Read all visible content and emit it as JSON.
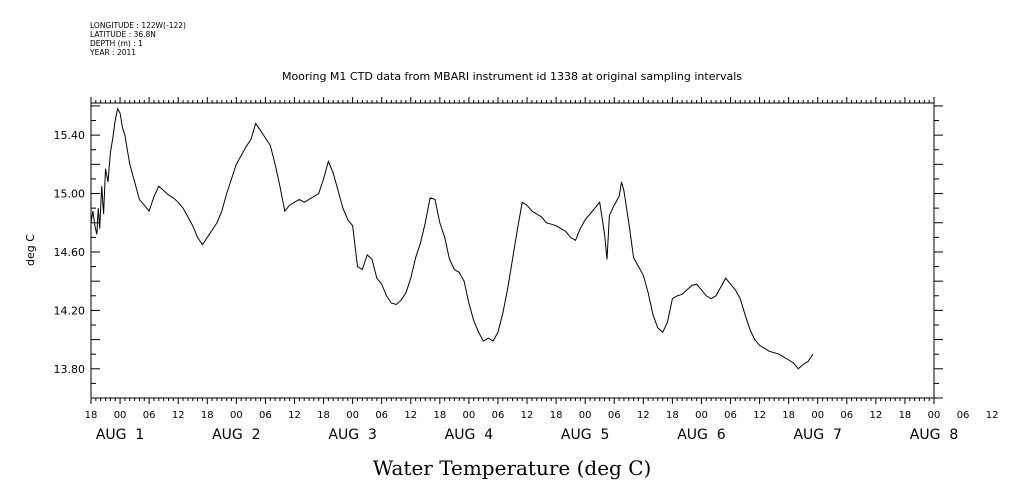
{
  "meta": {
    "longitude": "LONGITUDE : 122W(-122)",
    "latitude": "LATITUDE : 36.8N",
    "depth": "DEPTH (m) : 1",
    "year": "YEAR : 2011"
  },
  "chart_data": {
    "type": "line",
    "title": "Mooring M1 CTD data from MBARI instrument id 1338 at original sampling intervals",
    "xlabel": "Water Temperature (deg C)",
    "ylabel": "deg C",
    "ylim": [
      13.6,
      15.62
    ],
    "xlim_hours": [
      -6,
      168
    ],
    "yticks": [
      13.8,
      14.2,
      14.6,
      15.0,
      15.4
    ],
    "ytick_labels": [
      "13.80",
      "14.20",
      "14.60",
      "15.00",
      "15.40"
    ],
    "xtick_labels": [
      "18",
      "00",
      "06",
      "12",
      "18",
      "00",
      "06",
      "12",
      "18",
      "00",
      "06",
      "12",
      "18",
      "00",
      "06",
      "12",
      "18",
      "00",
      "06",
      "12",
      "18",
      "00",
      "06",
      "12",
      "18",
      "00",
      "06",
      "12",
      "18",
      "00",
      "06",
      "12",
      "18"
    ],
    "day_labels": [
      {
        "text": "AUG  1",
        "hour": 0
      },
      {
        "text": "AUG  2",
        "hour": 24
      },
      {
        "text": "AUG  3",
        "hour": 48
      },
      {
        "text": "AUG  4",
        "hour": 72
      },
      {
        "text": "AUG  5",
        "hour": 96
      },
      {
        "text": "AUG  6",
        "hour": 120
      },
      {
        "text": "AUG  7",
        "hour": 144
      },
      {
        "text": "AUG  8",
        "hour": 168
      }
    ],
    "series": [
      {
        "color": "#000000",
        "points": [
          [
            -6,
            14.8
          ],
          [
            -5.6,
            14.88
          ],
          [
            -5.2,
            14.78
          ],
          [
            -4.8,
            14.72
          ],
          [
            -4.5,
            14.9
          ],
          [
            -4.2,
            14.76
          ],
          [
            -3.8,
            15.05
          ],
          [
            -3.4,
            14.86
          ],
          [
            -3.0,
            15.17
          ],
          [
            -2.5,
            15.08
          ],
          [
            -2.0,
            15.28
          ],
          [
            -1.5,
            15.38
          ],
          [
            -1.0,
            15.5
          ],
          [
            -0.5,
            15.58
          ],
          [
            0,
            15.55
          ],
          [
            0.5,
            15.45
          ],
          [
            1.0,
            15.4
          ],
          [
            1.5,
            15.3
          ],
          [
            2,
            15.2
          ],
          [
            3,
            15.08
          ],
          [
            4,
            14.96
          ],
          [
            5,
            14.92
          ],
          [
            6,
            14.88
          ],
          [
            7,
            14.98
          ],
          [
            8,
            15.05
          ],
          [
            9,
            15.02
          ],
          [
            10,
            14.99
          ],
          [
            11,
            14.97
          ],
          [
            12,
            14.94
          ],
          [
            13,
            14.9
          ],
          [
            14,
            14.84
          ],
          [
            15,
            14.78
          ],
          [
            16,
            14.7
          ],
          [
            17,
            14.65
          ],
          [
            18,
            14.7
          ],
          [
            19,
            14.75
          ],
          [
            20,
            14.8
          ],
          [
            21,
            14.88
          ],
          [
            22,
            15.0
          ],
          [
            23,
            15.1
          ],
          [
            24,
            15.2
          ],
          [
            25,
            15.26
          ],
          [
            26,
            15.32
          ],
          [
            27,
            15.37
          ],
          [
            28,
            15.48
          ],
          [
            29,
            15.43
          ],
          [
            30,
            15.38
          ],
          [
            31,
            15.33
          ],
          [
            32,
            15.2
          ],
          [
            33,
            15.05
          ],
          [
            34,
            14.88
          ],
          [
            35,
            14.92
          ],
          [
            36,
            14.94
          ],
          [
            37,
            14.96
          ],
          [
            38,
            14.94
          ],
          [
            39,
            14.96
          ],
          [
            40,
            14.98
          ],
          [
            41,
            15.0
          ],
          [
            42,
            15.1
          ],
          [
            43,
            15.22
          ],
          [
            44,
            15.14
          ],
          [
            45,
            15.02
          ],
          [
            46,
            14.9
          ],
          [
            47,
            14.82
          ],
          [
            48,
            14.78
          ],
          [
            49,
            14.5
          ],
          [
            50,
            14.48
          ],
          [
            51,
            14.58
          ],
          [
            52,
            14.55
          ],
          [
            53,
            14.42
          ],
          [
            54,
            14.38
          ],
          [
            55,
            14.3
          ],
          [
            56,
            14.25
          ],
          [
            57,
            14.24
          ],
          [
            58,
            14.27
          ],
          [
            59,
            14.32
          ],
          [
            60,
            14.42
          ],
          [
            61,
            14.56
          ],
          [
            62,
            14.66
          ],
          [
            63,
            14.8
          ],
          [
            64,
            14.97
          ],
          [
            65,
            14.96
          ],
          [
            66,
            14.8
          ],
          [
            67,
            14.7
          ],
          [
            68,
            14.55
          ],
          [
            69,
            14.48
          ],
          [
            70,
            14.46
          ],
          [
            71,
            14.4
          ],
          [
            72,
            14.25
          ],
          [
            73,
            14.13
          ],
          [
            74,
            14.05
          ],
          [
            75,
            13.99
          ],
          [
            76,
            14.01
          ],
          [
            77,
            13.99
          ],
          [
            78,
            14.05
          ],
          [
            79,
            14.18
          ],
          [
            80,
            14.35
          ],
          [
            81,
            14.55
          ],
          [
            82,
            14.75
          ],
          [
            83,
            14.94
          ],
          [
            84,
            14.92
          ],
          [
            85,
            14.88
          ],
          [
            86,
            14.86
          ],
          [
            87,
            14.84
          ],
          [
            88,
            14.8
          ],
          [
            89,
            14.79
          ],
          [
            90,
            14.78
          ],
          [
            91,
            14.76
          ],
          [
            92,
            14.74
          ],
          [
            93,
            14.7
          ],
          [
            94,
            14.68
          ],
          [
            95,
            14.76
          ],
          [
            96,
            14.82
          ],
          [
            97,
            14.86
          ],
          [
            98,
            14.9
          ],
          [
            99,
            14.94
          ],
          [
            100,
            14.72
          ],
          [
            100.5,
            14.55
          ],
          [
            101,
            14.85
          ],
          [
            102,
            14.92
          ],
          [
            103,
            14.98
          ],
          [
            103.5,
            15.08
          ],
          [
            104,
            15.02
          ],
          [
            105,
            14.8
          ],
          [
            106,
            14.56
          ],
          [
            107,
            14.5
          ],
          [
            108,
            14.44
          ],
          [
            109,
            14.32
          ],
          [
            110,
            14.17
          ],
          [
            111,
            14.08
          ],
          [
            112,
            14.05
          ],
          [
            113,
            14.12
          ],
          [
            114,
            14.28
          ],
          [
            115,
            14.3
          ],
          [
            116,
            14.31
          ],
          [
            117,
            14.34
          ],
          [
            118,
            14.37
          ],
          [
            119,
            14.38
          ],
          [
            120,
            14.34
          ],
          [
            121,
            14.3
          ],
          [
            122,
            14.28
          ],
          [
            123,
            14.3
          ],
          [
            124,
            14.36
          ],
          [
            125,
            14.42
          ],
          [
            126,
            14.38
          ],
          [
            127,
            14.34
          ],
          [
            128,
            14.28
          ],
          [
            129,
            14.17
          ],
          [
            130,
            14.07
          ],
          [
            131,
            14.0
          ],
          [
            132,
            13.96
          ],
          [
            133,
            13.94
          ],
          [
            134,
            13.92
          ],
          [
            135,
            13.91
          ],
          [
            136,
            13.9
          ],
          [
            137,
            13.88
          ],
          [
            138,
            13.86
          ],
          [
            139,
            13.84
          ],
          [
            140,
            13.8
          ],
          [
            141,
            13.83
          ],
          [
            142,
            13.85
          ],
          [
            143,
            13.9
          ]
        ]
      }
    ]
  }
}
